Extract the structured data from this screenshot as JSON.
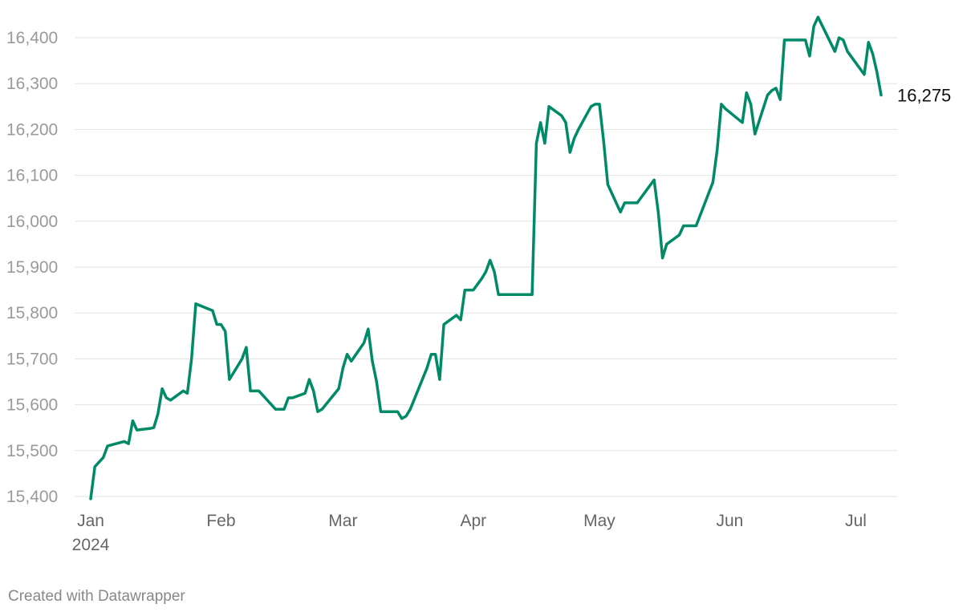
{
  "footer": {
    "credit": "Created with Datawrapper"
  },
  "chart_data": {
    "type": "line",
    "title": "",
    "xlabel": "",
    "ylabel": "",
    "ylim": [
      15400,
      16400
    ],
    "yticks": [
      "15,400",
      "15,500",
      "15,600",
      "15,700",
      "15,800",
      "15,900",
      "16,000",
      "16,100",
      "16,200",
      "16,300",
      "16,400"
    ],
    "xticks": [
      {
        "date": "2024-01-01",
        "label": "Jan",
        "sublabel": "2024"
      },
      {
        "date": "2024-02-01",
        "label": "Feb",
        "sublabel": ""
      },
      {
        "date": "2024-03-01",
        "label": "Mar",
        "sublabel": ""
      },
      {
        "date": "2024-04-01",
        "label": "Apr",
        "sublabel": ""
      },
      {
        "date": "2024-05-01",
        "label": "May",
        "sublabel": ""
      },
      {
        "date": "2024-06-01",
        "label": "Jun",
        "sublabel": ""
      },
      {
        "date": "2024-07-01",
        "label": "Jul",
        "sublabel": ""
      }
    ],
    "grid": true,
    "line_color": "#008a67",
    "end_label": "16,275",
    "series": [
      {
        "points": [
          [
            "2024-01-01",
            15395
          ],
          [
            "2024-01-02",
            15465
          ],
          [
            "2024-01-03",
            15475
          ],
          [
            "2024-01-04",
            15485
          ],
          [
            "2024-01-05",
            15510
          ],
          [
            "2024-01-07",
            15515
          ],
          [
            "2024-01-09",
            15520
          ],
          [
            "2024-01-10",
            15515
          ],
          [
            "2024-01-11",
            15565
          ],
          [
            "2024-01-12",
            15545
          ],
          [
            "2024-01-15",
            15548
          ],
          [
            "2024-01-16",
            15550
          ],
          [
            "2024-01-17",
            15580
          ],
          [
            "2024-01-18",
            15635
          ],
          [
            "2024-01-19",
            15615
          ],
          [
            "2024-01-20",
            15610
          ],
          [
            "2024-01-23",
            15630
          ],
          [
            "2024-01-24",
            15625
          ],
          [
            "2024-01-25",
            15700
          ],
          [
            "2024-01-26",
            15820
          ],
          [
            "2024-01-30",
            15805
          ],
          [
            "2024-01-31",
            15775
          ],
          [
            "2024-02-01",
            15775
          ],
          [
            "2024-02-02",
            15760
          ],
          [
            "2024-02-03",
            15655
          ],
          [
            "2024-02-05",
            15685
          ],
          [
            "2024-02-06",
            15700
          ],
          [
            "2024-02-07",
            15725
          ],
          [
            "2024-02-08",
            15630
          ],
          [
            "2024-02-10",
            15630
          ],
          [
            "2024-02-14",
            15590
          ],
          [
            "2024-02-16",
            15590
          ],
          [
            "2024-02-17",
            15615
          ],
          [
            "2024-02-18",
            15615
          ],
          [
            "2024-02-21",
            15625
          ],
          [
            "2024-02-22",
            15655
          ],
          [
            "2024-02-23",
            15630
          ],
          [
            "2024-02-24",
            15585
          ],
          [
            "2024-02-25",
            15590
          ],
          [
            "2024-02-29",
            15635
          ],
          [
            "2024-03-01",
            15680
          ],
          [
            "2024-03-02",
            15710
          ],
          [
            "2024-03-03",
            15695
          ],
          [
            "2024-03-06",
            15735
          ],
          [
            "2024-03-07",
            15765
          ],
          [
            "2024-03-08",
            15695
          ],
          [
            "2024-03-09",
            15650
          ],
          [
            "2024-03-10",
            15585
          ],
          [
            "2024-03-14",
            15585
          ],
          [
            "2024-03-15",
            15570
          ],
          [
            "2024-03-16",
            15575
          ],
          [
            "2024-03-17",
            15590
          ],
          [
            "2024-03-21",
            15680
          ],
          [
            "2024-03-22",
            15710
          ],
          [
            "2024-03-23",
            15710
          ],
          [
            "2024-03-24",
            15655
          ],
          [
            "2024-03-25",
            15775
          ],
          [
            "2024-03-28",
            15795
          ],
          [
            "2024-03-29",
            15785
          ],
          [
            "2024-03-30",
            15850
          ],
          [
            "2024-04-01",
            15850
          ],
          [
            "2024-04-03",
            15875
          ],
          [
            "2024-04-04",
            15890
          ],
          [
            "2024-04-05",
            15915
          ],
          [
            "2024-04-06",
            15890
          ],
          [
            "2024-04-07",
            15840
          ],
          [
            "2024-04-15",
            15840
          ],
          [
            "2024-04-16",
            16170
          ],
          [
            "2024-04-17",
            16215
          ],
          [
            "2024-04-18",
            16170
          ],
          [
            "2024-04-19",
            16250
          ],
          [
            "2024-04-22",
            16230
          ],
          [
            "2024-04-23",
            16215
          ],
          [
            "2024-04-24",
            16150
          ],
          [
            "2024-04-25",
            16180
          ],
          [
            "2024-04-26",
            16200
          ],
          [
            "2024-04-29",
            16250
          ],
          [
            "2024-04-30",
            16255
          ],
          [
            "2024-05-01",
            16255
          ],
          [
            "2024-05-02",
            16175
          ],
          [
            "2024-05-03",
            16080
          ],
          [
            "2024-05-06",
            16020
          ],
          [
            "2024-05-07",
            16040
          ],
          [
            "2024-05-10",
            16040
          ],
          [
            "2024-05-14",
            16090
          ],
          [
            "2024-05-15",
            16020
          ],
          [
            "2024-05-16",
            15920
          ],
          [
            "2024-05-17",
            15950
          ],
          [
            "2024-05-20",
            15970
          ],
          [
            "2024-05-21",
            15990
          ],
          [
            "2024-05-24",
            15990
          ],
          [
            "2024-05-28",
            16085
          ],
          [
            "2024-05-29",
            16155
          ],
          [
            "2024-05-30",
            16255
          ],
          [
            "2024-05-31",
            16245
          ],
          [
            "2024-06-04",
            16215
          ],
          [
            "2024-06-05",
            16280
          ],
          [
            "2024-06-06",
            16255
          ],
          [
            "2024-06-07",
            16190
          ],
          [
            "2024-06-10",
            16275
          ],
          [
            "2024-06-11",
            16285
          ],
          [
            "2024-06-12",
            16290
          ],
          [
            "2024-06-13",
            16265
          ],
          [
            "2024-06-14",
            16395
          ],
          [
            "2024-06-19",
            16395
          ],
          [
            "2024-06-20",
            16360
          ],
          [
            "2024-06-21",
            16425
          ],
          [
            "2024-06-22",
            16445
          ],
          [
            "2024-06-26",
            16370
          ],
          [
            "2024-06-27",
            16400
          ],
          [
            "2024-06-28",
            16395
          ],
          [
            "2024-06-29",
            16370
          ],
          [
            "2024-07-03",
            16320
          ],
          [
            "2024-07-04",
            16390
          ],
          [
            "2024-07-05",
            16365
          ],
          [
            "2024-07-06",
            16325
          ],
          [
            "2024-07-07",
            16275
          ]
        ]
      }
    ]
  }
}
